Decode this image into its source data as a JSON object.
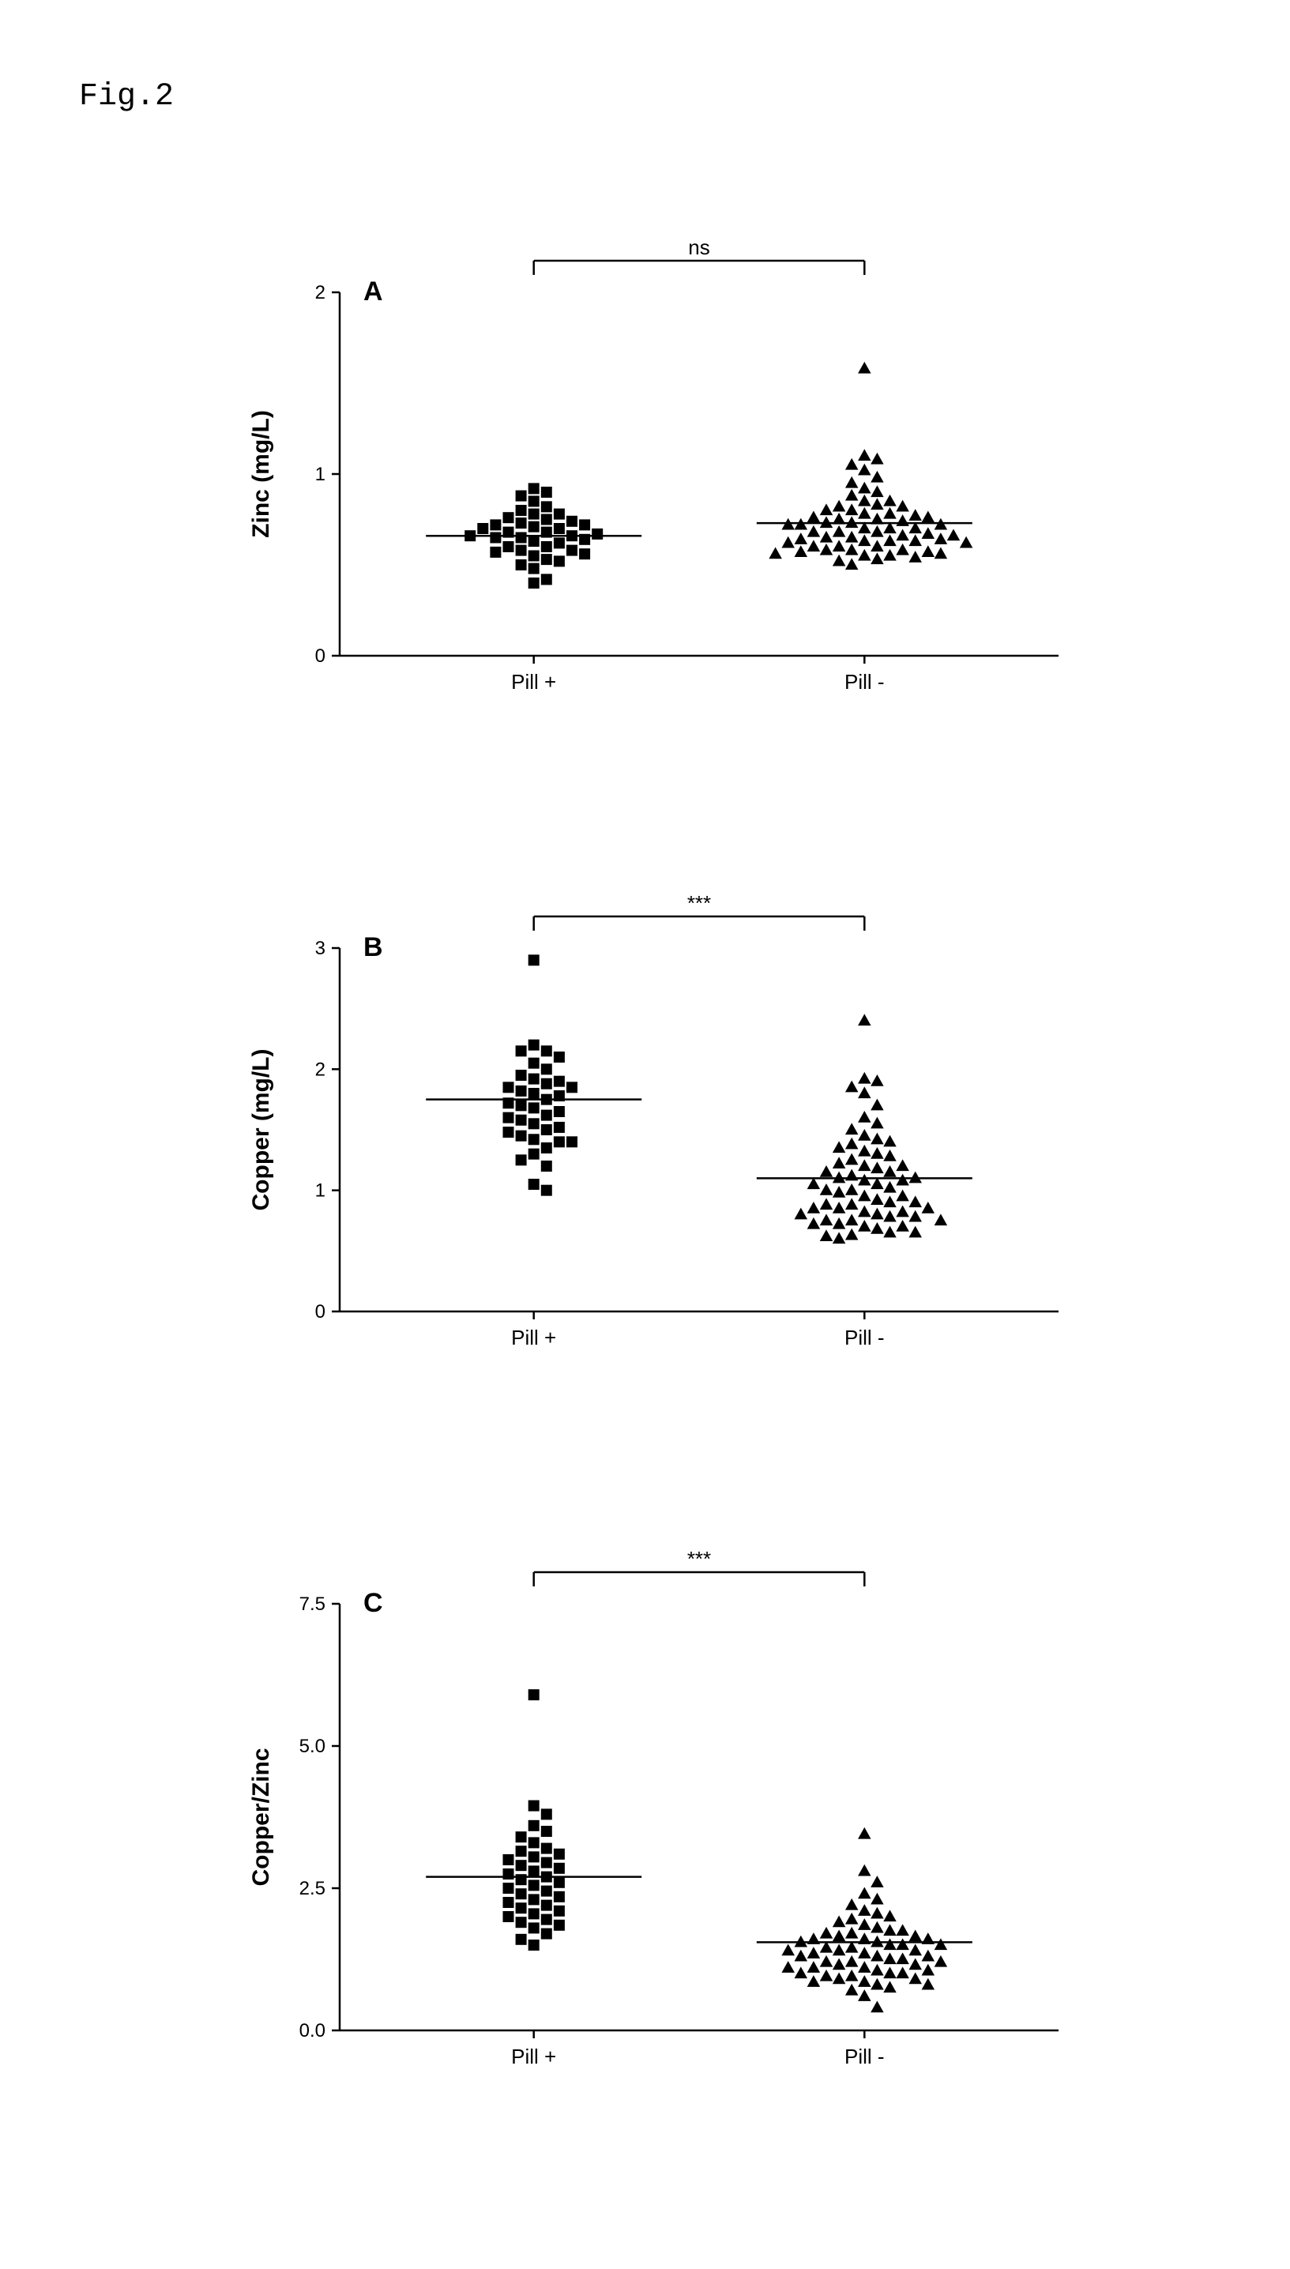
{
  "figure_label": "Fig.2",
  "global": {
    "background_color": "#ffffff",
    "axis_color": "#000000",
    "point_color": "#000000",
    "median_color": "#000000",
    "bracket_color": "#000000",
    "font_family_mono": "Courier New",
    "font_family_sans": "Arial",
    "axis_line_width": 2.5,
    "tick_length": 10,
    "marker_size": 14,
    "median_line_width": 2.5
  },
  "panels": {
    "A": {
      "letter": "A",
      "ylabel": "Zinc (mg/L)",
      "ylim": [
        0,
        2
      ],
      "yticks": [
        0,
        1,
        2
      ],
      "ytick_labels": [
        "0",
        "1",
        "2"
      ],
      "categories": [
        "Pill +",
        "Pill -"
      ],
      "significance_label": "ns",
      "sig_fontsize": 26,
      "median": [
        0.66,
        0.73
      ],
      "marker_shapes": [
        "square",
        "triangle"
      ],
      "points_group1": [
        0.4,
        0.42,
        0.48,
        0.5,
        0.52,
        0.53,
        0.55,
        0.56,
        0.57,
        0.58,
        0.58,
        0.6,
        0.6,
        0.62,
        0.63,
        0.64,
        0.65,
        0.65,
        0.66,
        0.66,
        0.67,
        0.68,
        0.68,
        0.7,
        0.7,
        0.71,
        0.72,
        0.72,
        0.73,
        0.74,
        0.75,
        0.76,
        0.78,
        0.78,
        0.8,
        0.82,
        0.85,
        0.88,
        0.9,
        0.92
      ],
      "points_group2": [
        0.5,
        0.52,
        0.53,
        0.54,
        0.55,
        0.55,
        0.56,
        0.56,
        0.57,
        0.57,
        0.58,
        0.58,
        0.58,
        0.6,
        0.6,
        0.6,
        0.62,
        0.62,
        0.63,
        0.63,
        0.63,
        0.64,
        0.64,
        0.65,
        0.65,
        0.66,
        0.66,
        0.67,
        0.68,
        0.68,
        0.68,
        0.7,
        0.7,
        0.7,
        0.72,
        0.72,
        0.72,
        0.73,
        0.73,
        0.74,
        0.75,
        0.75,
        0.76,
        0.76,
        0.77,
        0.78,
        0.78,
        0.8,
        0.8,
        0.82,
        0.82,
        0.83,
        0.85,
        0.85,
        0.88,
        0.9,
        0.92,
        0.95,
        0.98,
        1.02,
        1.05,
        1.08,
        1.1,
        1.58
      ]
    },
    "B": {
      "letter": "B",
      "ylabel": "Copper (mg/L)",
      "ylim": [
        0,
        3
      ],
      "yticks": [
        0,
        1,
        2,
        3
      ],
      "ytick_labels": [
        "0",
        "1",
        "2",
        "3"
      ],
      "categories": [
        "Pill +",
        "Pill -"
      ],
      "significance_label": "***",
      "sig_fontsize": 26,
      "median": [
        1.75,
        1.1
      ],
      "marker_shapes": [
        "square",
        "triangle"
      ],
      "points_group1": [
        1.0,
        1.05,
        1.2,
        1.25,
        1.3,
        1.35,
        1.4,
        1.4,
        1.42,
        1.45,
        1.48,
        1.5,
        1.52,
        1.55,
        1.58,
        1.6,
        1.62,
        1.65,
        1.68,
        1.7,
        1.72,
        1.75,
        1.78,
        1.8,
        1.82,
        1.85,
        1.85,
        1.88,
        1.9,
        1.92,
        1.95,
        2.0,
        2.05,
        2.1,
        2.15,
        2.15,
        2.2,
        2.9
      ],
      "points_group2": [
        0.6,
        0.62,
        0.63,
        0.65,
        0.65,
        0.68,
        0.7,
        0.7,
        0.72,
        0.72,
        0.75,
        0.75,
        0.75,
        0.78,
        0.78,
        0.8,
        0.8,
        0.82,
        0.82,
        0.85,
        0.85,
        0.85,
        0.88,
        0.88,
        0.9,
        0.9,
        0.92,
        0.95,
        0.95,
        0.98,
        1.0,
        1.0,
        1.02,
        1.05,
        1.05,
        1.08,
        1.08,
        1.1,
        1.1,
        1.12,
        1.15,
        1.15,
        1.18,
        1.2,
        1.2,
        1.22,
        1.25,
        1.28,
        1.3,
        1.32,
        1.35,
        1.38,
        1.4,
        1.42,
        1.45,
        1.5,
        1.55,
        1.6,
        1.7,
        1.8,
        1.85,
        1.9,
        1.92,
        2.4
      ]
    },
    "C": {
      "letter": "C",
      "ylabel": "Copper/Zinc",
      "ylim": [
        0.0,
        7.5
      ],
      "yticks": [
        0.0,
        2.5,
        5.0,
        7.5
      ],
      "ytick_labels": [
        "0.0",
        "2.5",
        "5.0",
        "7.5"
      ],
      "categories": [
        "Pill +",
        "Pill -"
      ],
      "significance_label": "***",
      "sig_fontsize": 26,
      "median": [
        2.7,
        1.55
      ],
      "marker_shapes": [
        "square",
        "triangle"
      ],
      "points_group1": [
        1.5,
        1.6,
        1.7,
        1.8,
        1.85,
        1.9,
        1.95,
        2.0,
        2.05,
        2.1,
        2.15,
        2.2,
        2.25,
        2.3,
        2.35,
        2.4,
        2.45,
        2.5,
        2.55,
        2.6,
        2.65,
        2.7,
        2.75,
        2.8,
        2.85,
        2.9,
        2.95,
        3.0,
        3.05,
        3.1,
        3.15,
        3.2,
        3.3,
        3.4,
        3.5,
        3.6,
        3.8,
        3.95,
        5.9
      ],
      "points_group2": [
        0.4,
        0.6,
        0.7,
        0.75,
        0.8,
        0.8,
        0.85,
        0.85,
        0.9,
        0.9,
        0.95,
        0.95,
        1.0,
        1.0,
        1.0,
        1.05,
        1.05,
        1.1,
        1.1,
        1.1,
        1.15,
        1.15,
        1.2,
        1.2,
        1.2,
        1.25,
        1.25,
        1.3,
        1.3,
        1.3,
        1.35,
        1.35,
        1.4,
        1.4,
        1.4,
        1.45,
        1.45,
        1.5,
        1.5,
        1.5,
        1.55,
        1.55,
        1.6,
        1.6,
        1.6,
        1.65,
        1.65,
        1.7,
        1.7,
        1.75,
        1.75,
        1.8,
        1.85,
        1.9,
        1.95,
        2.0,
        2.05,
        2.1,
        2.2,
        2.3,
        2.4,
        2.6,
        2.8,
        3.45
      ]
    }
  }
}
